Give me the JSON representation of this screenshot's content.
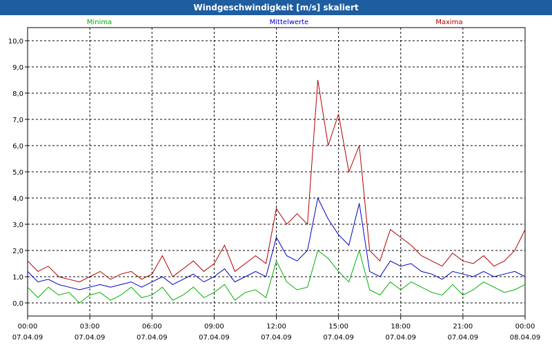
{
  "window": {
    "title": "Windgeschwindigkeit [m/s] skaliert"
  },
  "chart_data": {
    "type": "line",
    "title": "Windgeschwindigkeit [m/s] skaliert",
    "xlabel": "",
    "ylabel": "",
    "ylim": [
      -0.5,
      10.5
    ],
    "y_ticks": [
      "0,0",
      "1,0",
      "2,0",
      "3,0",
      "4,0",
      "5,0",
      "6,0",
      "7,0",
      "8,0",
      "9,0",
      "10,0"
    ],
    "x_ticks": [
      {
        "time": "00:00",
        "date": "07.04.09"
      },
      {
        "time": "03:00",
        "date": "07.04.09"
      },
      {
        "time": "06:00",
        "date": "07.04.09"
      },
      {
        "time": "09:00",
        "date": "07.04.09"
      },
      {
        "time": "12:00",
        "date": "07.04.09"
      },
      {
        "time": "15:00",
        "date": "07.04.09"
      },
      {
        "time": "18:00",
        "date": "07.04.09"
      },
      {
        "time": "21:00",
        "date": "07.04.09"
      },
      {
        "time": "00:00",
        "date": "08.04.09"
      }
    ],
    "grid": true,
    "legend_position": "top",
    "x_hours": [
      0,
      0.5,
      1,
      1.5,
      2,
      2.5,
      3,
      3.5,
      4,
      4.5,
      5,
      5.5,
      6,
      6.5,
      7,
      7.5,
      8,
      8.5,
      9,
      9.5,
      10,
      10.5,
      11,
      11.5,
      12,
      12.5,
      13,
      13.5,
      14,
      14.5,
      15,
      15.5,
      16,
      16.5,
      17,
      17.5,
      18,
      18.5,
      19,
      19.5,
      20,
      20.5,
      21,
      21.5,
      22,
      22.5,
      23,
      23.5,
      24
    ],
    "series": [
      {
        "name": "Minima",
        "color": "#00b000",
        "values": [
          0.6,
          0.2,
          0.6,
          0.3,
          0.4,
          0,
          0.3,
          0.4,
          0.1,
          0.3,
          0.6,
          0.2,
          0.3,
          0.6,
          0.1,
          0.3,
          0.6,
          0.2,
          0.4,
          0.7,
          0.1,
          0.4,
          0.5,
          0.2,
          1.6,
          0.8,
          0.5,
          0.6,
          2.0,
          1.7,
          1.2,
          0.8,
          2.0,
          0.5,
          0.3,
          0.8,
          0.5,
          0.8,
          0.6,
          0.4,
          0.3,
          0.7,
          0.3,
          0.5,
          0.8,
          0.6,
          0.4,
          0.5,
          0.7
        ]
      },
      {
        "name": "Mittelwerte",
        "color": "#0000c0",
        "values": [
          1.2,
          0.8,
          0.9,
          0.7,
          0.6,
          0.5,
          0.6,
          0.7,
          0.6,
          0.7,
          0.8,
          0.6,
          0.8,
          1.0,
          0.7,
          0.9,
          1.1,
          0.8,
          1.0,
          1.3,
          0.8,
          1.0,
          1.2,
          1.0,
          2.5,
          1.8,
          1.6,
          2.0,
          4.0,
          3.2,
          2.6,
          2.2,
          3.8,
          1.2,
          1.0,
          1.6,
          1.4,
          1.5,
          1.2,
          1.1,
          0.9,
          1.2,
          1.1,
          1.0,
          1.2,
          1.0,
          1.1,
          1.2,
          1.0
        ]
      },
      {
        "name": "Maxima",
        "color": "#b00000",
        "values": [
          1.6,
          1.2,
          1.4,
          1.0,
          0.9,
          0.8,
          1.0,
          1.2,
          0.9,
          1.1,
          1.2,
          0.9,
          1.1,
          1.8,
          1.0,
          1.3,
          1.6,
          1.2,
          1.5,
          2.2,
          1.2,
          1.5,
          1.8,
          1.5,
          3.6,
          3.0,
          3.4,
          3.0,
          8.5,
          6.0,
          7.2,
          5.0,
          6.0,
          2.0,
          1.6,
          2.8,
          2.5,
          2.2,
          1.8,
          1.6,
          1.4,
          1.9,
          1.6,
          1.5,
          1.8,
          1.4,
          1.6,
          2.0,
          2.8
        ]
      }
    ]
  }
}
